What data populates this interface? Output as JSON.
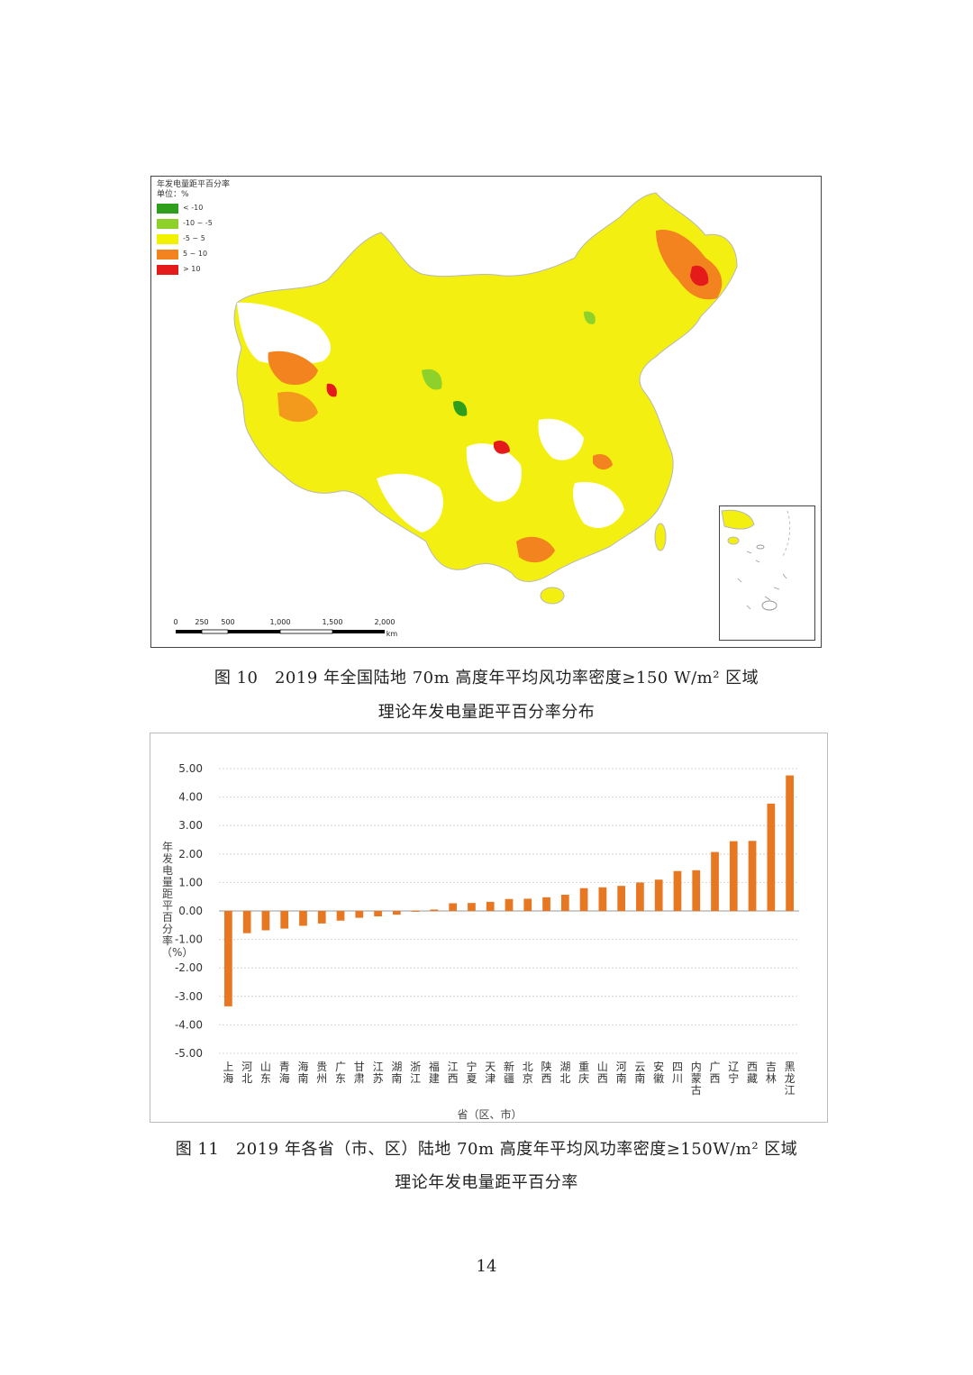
{
  "map": {
    "legend_title": "年发电量距平百分率",
    "legend_unit": "单位：%",
    "legend_items": [
      {
        "label": "< -10",
        "color": "#2e9e1c"
      },
      {
        "label": "-10 ~ -5",
        "color": "#8fd12b"
      },
      {
        "label": "-5 ~ 5",
        "color": "#f2f200"
      },
      {
        "label": "5 ~ 10",
        "color": "#f2831e"
      },
      {
        "label": "> 10",
        "color": "#e51b1b"
      }
    ],
    "scale_labels": [
      "0",
      "250",
      "500",
      "1,000",
      "1,500",
      "2,000"
    ],
    "scale_unit": "km"
  },
  "figure10": {
    "caption_line1": "图 10　2019 年全国陆地 70m 高度年平均风功率密度≥150 W/m² 区域",
    "caption_line2": "理论年发电量距平百分率分布"
  },
  "chart_data": {
    "type": "bar",
    "categories": [
      "上海",
      "河北",
      "山东",
      "青海",
      "海南",
      "贵州",
      "广东",
      "甘肃",
      "江苏",
      "湖南",
      "浙江",
      "福建",
      "江西",
      "宁夏",
      "天津",
      "新疆",
      "北京",
      "陕西",
      "湖北",
      "重庆",
      "山西",
      "河南",
      "云南",
      "安徽",
      "四川",
      "内蒙古",
      "广西",
      "辽宁",
      "西藏",
      "吉林",
      "黑龙江"
    ],
    "values": [
      -3.35,
      -0.78,
      -0.68,
      -0.62,
      -0.52,
      -0.44,
      -0.34,
      -0.24,
      -0.19,
      -0.13,
      -0.03,
      0.05,
      0.27,
      0.28,
      0.32,
      0.42,
      0.43,
      0.48,
      0.57,
      0.8,
      0.83,
      0.88,
      1.0,
      1.1,
      1.4,
      1.43,
      2.07,
      2.45,
      2.46,
      3.77,
      4.76
    ],
    "color": "#e87722",
    "ylim": [
      -5,
      5
    ],
    "yticks": [
      "-5.00",
      "-4.00",
      "-3.00",
      "-2.00",
      "-1.00",
      "0.00",
      "1.00",
      "2.00",
      "3.00",
      "4.00",
      "5.00"
    ],
    "ylabel": "年发电量距平百分率（%）",
    "xlabel": "省（区、市）",
    "grid": true
  },
  "figure11": {
    "caption_line1": "图 11　2019 年各省（市、区）陆地 70m 高度年平均风功率密度≥150W/m² 区域",
    "caption_line2": "理论年发电量距平百分率"
  },
  "page_number": "14"
}
